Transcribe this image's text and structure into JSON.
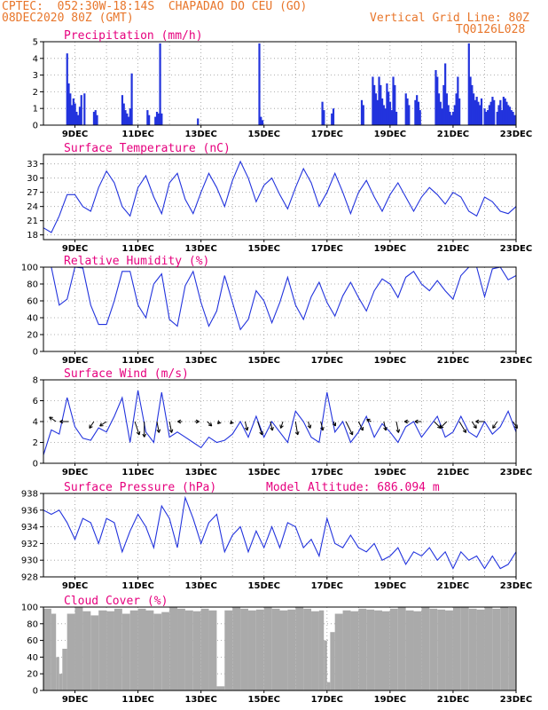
{
  "header": {
    "line1": "CPTEC:  052:30W-18:14S  CHAPADAO DO CEU (GO)",
    "line2": "08DEC2020 80Z (GMT)",
    "grid_note": "Vertical Grid Line: 80Z",
    "code": "TQ0126L028"
  },
  "colors": {
    "header": "#e8762b",
    "title": "#e6007e",
    "series": "#2233dd",
    "cloud": "#aaaaaa"
  },
  "chart_data": [
    {
      "id": "precip",
      "type": "bar",
      "title": "Precipitation (mm/h)",
      "ylim": [
        0,
        5
      ],
      "yticks": [
        0,
        1,
        2,
        3,
        4,
        5
      ],
      "xlim": [
        8,
        23
      ],
      "xtick_days": [
        9,
        11,
        13,
        15,
        17,
        19,
        21,
        23
      ],
      "xtick_labels": [
        "9DEC",
        "11DEC",
        "13DEC",
        "15DEC",
        "17DEC",
        "19DEC",
        "21DEC",
        "23DEC"
      ],
      "x_dec_day": [
        8.75,
        8.8,
        8.85,
        8.9,
        8.95,
        9.0,
        9.05,
        9.1,
        9.15,
        9.2,
        9.3,
        9.6,
        9.65,
        9.7,
        10.5,
        10.55,
        10.6,
        10.65,
        10.7,
        10.75,
        10.8,
        11.3,
        11.35,
        11.55,
        11.6,
        11.65,
        11.7,
        11.75,
        12.9,
        14.85,
        14.9,
        14.95,
        16.85,
        16.9,
        17.15,
        17.2,
        18.1,
        18.15,
        18.45,
        18.5,
        18.55,
        18.6,
        18.65,
        18.7,
        18.75,
        18.8,
        18.85,
        18.9,
        18.95,
        19.0,
        19.05,
        19.1,
        19.15,
        19.2,
        19.5,
        19.55,
        19.6,
        19.8,
        19.85,
        19.9,
        19.95,
        20.45,
        20.5,
        20.55,
        20.6,
        20.65,
        20.7,
        20.75,
        20.8,
        20.85,
        20.9,
        20.95,
        21.0,
        21.05,
        21.1,
        21.15,
        21.2,
        21.5,
        21.55,
        21.6,
        21.65,
        21.7,
        21.75,
        21.8,
        21.85,
        21.9,
        22.0,
        22.05,
        22.1,
        22.15,
        22.2,
        22.25,
        22.3,
        22.4,
        22.45,
        22.5,
        22.55,
        22.6,
        22.65,
        22.7,
        22.75,
        22.8,
        22.85,
        22.9,
        22.95
      ],
      "values": [
        4.3,
        2.5,
        1.9,
        1.2,
        1.6,
        1.3,
        0.8,
        0.6,
        1.1,
        1.8,
        1.9,
        0.8,
        0.9,
        0.6,
        1.8,
        1.3,
        0.9,
        0.7,
        0.5,
        1.0,
        3.1,
        0.9,
        0.6,
        0.5,
        0.8,
        0.7,
        4.9,
        0.7,
        0.4,
        4.9,
        0.5,
        0.3,
        1.4,
        0.9,
        0.7,
        1.0,
        1.5,
        1.2,
        2.9,
        2.4,
        1.9,
        1.5,
        2.9,
        2.4,
        1.6,
        1.2,
        1.0,
        2.5,
        2.0,
        1.4,
        0.9,
        2.9,
        2.4,
        0.8,
        1.9,
        1.6,
        1.2,
        1.5,
        1.8,
        1.4,
        0.9,
        3.3,
        2.9,
        1.9,
        1.4,
        1.0,
        2.4,
        3.7,
        1.9,
        1.2,
        0.8,
        0.6,
        0.8,
        1.2,
        1.9,
        2.9,
        1.6,
        4.9,
        2.9,
        2.4,
        1.9,
        1.5,
        1.7,
        1.4,
        1.2,
        1.6,
        1.0,
        0.8,
        0.9,
        1.2,
        1.4,
        1.7,
        1.5,
        0.8,
        1.2,
        1.5,
        0.9,
        1.7,
        1.6,
        1.4,
        1.2,
        1.1,
        0.9,
        0.8,
        0.6
      ]
    },
    {
      "id": "temp",
      "type": "line",
      "title": "Surface Temperature (nC)",
      "ylim": [
        17,
        35
      ],
      "yticks": [
        18,
        21,
        24,
        27,
        30,
        33
      ],
      "xlim": [
        8,
        23
      ],
      "xtick_days": [
        9,
        11,
        13,
        15,
        17,
        19,
        21,
        23
      ],
      "xtick_labels": [
        "9DEC",
        "11DEC",
        "13DEC",
        "15DEC",
        "17DEC",
        "19DEC",
        "21DEC",
        "23DEC"
      ],
      "x_dec_day": [
        8.0,
        8.25,
        8.5,
        8.75,
        9.0,
        9.25,
        9.5,
        9.75,
        10.0,
        10.25,
        10.5,
        10.75,
        11.0,
        11.25,
        11.5,
        11.75,
        12.0,
        12.25,
        12.5,
        12.75,
        13.0,
        13.25,
        13.5,
        13.75,
        14.0,
        14.25,
        14.5,
        14.75,
        15.0,
        15.25,
        15.5,
        15.75,
        16.0,
        16.25,
        16.5,
        16.75,
        17.0,
        17.25,
        17.5,
        17.75,
        18.0,
        18.25,
        18.5,
        18.75,
        19.0,
        19.25,
        19.5,
        19.75,
        20.0,
        20.25,
        20.5,
        20.75,
        21.0,
        21.25,
        21.5,
        21.75,
        22.0,
        22.25,
        22.5,
        22.75,
        23.0
      ],
      "values": [
        19.5,
        18.5,
        22.0,
        26.5,
        26.5,
        24.0,
        23.0,
        28.0,
        31.5,
        29.0,
        24.0,
        22.0,
        28.0,
        30.5,
        26.0,
        22.5,
        29.0,
        31.0,
        25.5,
        22.5,
        27.0,
        31.0,
        28.0,
        24.0,
        29.5,
        33.5,
        30.0,
        25.0,
        28.5,
        30.0,
        26.5,
        23.5,
        28.0,
        32.0,
        29.0,
        24.0,
        27.0,
        31.0,
        27.0,
        22.5,
        27.0,
        29.5,
        26.0,
        23.0,
        26.5,
        29.0,
        26.0,
        23.0,
        26.0,
        28.0,
        26.5,
        24.5,
        27.0,
        26.0,
        23.0,
        22.0,
        26.0,
        25.0,
        23.0,
        22.5,
        24.0
      ]
    },
    {
      "id": "rh",
      "type": "line",
      "title": "Relative Humidity (%)",
      "ylim": [
        0,
        100
      ],
      "yticks": [
        0,
        20,
        40,
        60,
        80,
        100
      ],
      "xlim": [
        8,
        23
      ],
      "xtick_days": [
        9,
        11,
        13,
        15,
        17,
        19,
        21,
        23
      ],
      "xtick_labels": [
        "9DEC",
        "11DEC",
        "13DEC",
        "15DEC",
        "17DEC",
        "19DEC",
        "21DEC",
        "23DEC"
      ],
      "x_dec_day": [
        8.0,
        8.25,
        8.5,
        8.75,
        9.0,
        9.25,
        9.5,
        9.75,
        10.0,
        10.25,
        10.5,
        10.75,
        11.0,
        11.25,
        11.5,
        11.75,
        12.0,
        12.25,
        12.5,
        12.75,
        13.0,
        13.25,
        13.5,
        13.75,
        14.0,
        14.25,
        14.5,
        14.75,
        15.0,
        15.25,
        15.5,
        15.75,
        16.0,
        16.25,
        16.5,
        16.75,
        17.0,
        17.25,
        17.5,
        17.75,
        18.0,
        18.25,
        18.5,
        18.75,
        19.0,
        19.25,
        19.5,
        19.75,
        20.0,
        20.25,
        20.5,
        20.75,
        21.0,
        21.25,
        21.5,
        21.75,
        22.0,
        22.25,
        22.5,
        22.75,
        23.0
      ],
      "values": [
        100,
        100,
        55,
        62,
        100,
        99,
        55,
        32,
        32,
        60,
        95,
        95,
        55,
        40,
        80,
        92,
        38,
        30,
        78,
        95,
        58,
        30,
        48,
        90,
        58,
        26,
        38,
        72,
        60,
        34,
        58,
        88,
        55,
        38,
        65,
        82,
        58,
        42,
        66,
        82,
        64,
        48,
        72,
        86,
        80,
        64,
        88,
        95,
        80,
        72,
        84,
        72,
        62,
        90,
        100,
        100,
        65,
        98,
        100,
        85,
        90
      ]
    },
    {
      "id": "wind",
      "type": "line",
      "title": "Surface Wind (m/s)",
      "ylim": [
        0,
        8
      ],
      "yticks": [
        0,
        2,
        4,
        6,
        8
      ],
      "xlim": [
        8,
        23
      ],
      "xtick_days": [
        9,
        11,
        13,
        15,
        17,
        19,
        21,
        23
      ],
      "xtick_labels": [
        "9DEC",
        "11DEC",
        "13DEC",
        "15DEC",
        "17DEC",
        "19DEC",
        "21DEC",
        "23DEC"
      ],
      "x_dec_day": [
        8.0,
        8.25,
        8.5,
        8.75,
        9.0,
        9.25,
        9.5,
        9.75,
        10.0,
        10.25,
        10.5,
        10.75,
        11.0,
        11.25,
        11.5,
        11.75,
        12.0,
        12.25,
        12.5,
        12.75,
        13.0,
        13.25,
        13.5,
        13.75,
        14.0,
        14.25,
        14.5,
        14.75,
        15.0,
        15.25,
        15.5,
        15.75,
        16.0,
        16.25,
        16.5,
        16.75,
        17.0,
        17.25,
        17.5,
        17.75,
        18.0,
        18.25,
        18.5,
        18.75,
        19.0,
        19.25,
        19.5,
        19.75,
        20.0,
        20.25,
        20.5,
        20.75,
        21.0,
        21.25,
        21.5,
        21.75,
        22.0,
        22.25,
        22.5,
        22.75,
        23.0
      ],
      "values": [
        0.8,
        3.2,
        2.8,
        6.3,
        3.5,
        2.4,
        2.2,
        3.4,
        3.0,
        4.5,
        6.3,
        2.0,
        7.0,
        3.0,
        2.0,
        6.8,
        2.5,
        3.0,
        2.5,
        2.0,
        1.5,
        2.5,
        2.0,
        2.2,
        2.8,
        4.0,
        2.5,
        4.5,
        2.5,
        4.0,
        3.0,
        2.0,
        5.0,
        4.0,
        2.5,
        2.0,
        6.8,
        3.0,
        4.0,
        2.0,
        3.0,
        4.5,
        2.5,
        3.8,
        3.0,
        2.0,
        3.5,
        4.0,
        2.5,
        3.5,
        4.5,
        2.5,
        3.0,
        4.5,
        3.0,
        2.5,
        4.0,
        2.8,
        3.5,
        5.0,
        3.0
      ],
      "arrows_x": [
        8.4,
        8.8,
        9.6,
        10.0,
        10.9,
        11.2,
        11.6,
        12.0,
        12.4,
        12.8,
        13.2,
        13.6,
        14.0,
        14.4,
        14.8,
        15.2,
        15.6,
        16.0,
        16.4,
        16.8,
        17.2,
        17.6,
        18.0,
        18.4,
        18.8,
        19.2,
        19.6,
        20.0,
        20.4,
        20.8,
        21.2,
        21.6,
        22.0,
        22.4,
        22.9
      ],
      "arrows_u": [
        -1.5,
        -2.0,
        -1.0,
        -1.5,
        1.0,
        0.0,
        0.5,
        0.5,
        -1.0,
        1.0,
        1.0,
        -0.5,
        -0.5,
        0.5,
        1.0,
        0.5,
        -0.5,
        0.5,
        0.5,
        0.5,
        0.5,
        1.5,
        1.0,
        -1.0,
        0.5,
        0.5,
        -1.0,
        -1.5,
        1.5,
        -1.5,
        1.5,
        1.0,
        -2.0,
        -1.0,
        1.0
      ],
      "arrows_v": [
        -1.0,
        0.0,
        1.5,
        1.0,
        3.0,
        3.5,
        2.5,
        2.5,
        0.0,
        0.0,
        1.0,
        0.5,
        0.5,
        2.0,
        3.0,
        2.0,
        1.5,
        3.0,
        1.5,
        2.0,
        1.0,
        3.0,
        2.0,
        -0.5,
        2.0,
        2.5,
        0.0,
        0.0,
        1.5,
        1.5,
        2.5,
        1.5,
        0.0,
        1.5,
        1.5
      ]
    },
    {
      "id": "pres",
      "type": "line",
      "title": "Surface Pressure (hPa)",
      "annotation": "Model Altitude: 686.094 m",
      "ylim": [
        928,
        938
      ],
      "yticks": [
        928,
        930,
        932,
        934,
        936,
        938
      ],
      "xlim": [
        8,
        23
      ],
      "xtick_days": [
        9,
        11,
        13,
        15,
        17,
        19,
        21,
        23
      ],
      "xtick_labels": [
        "9DEC",
        "11DEC",
        "13DEC",
        "15DEC",
        "17DEC",
        "19DEC",
        "21DEC",
        "23DEC"
      ],
      "x_dec_day": [
        8.0,
        8.25,
        8.5,
        8.75,
        9.0,
        9.25,
        9.5,
        9.75,
        10.0,
        10.25,
        10.5,
        10.75,
        11.0,
        11.25,
        11.5,
        11.75,
        12.0,
        12.25,
        12.5,
        12.75,
        13.0,
        13.25,
        13.5,
        13.75,
        14.0,
        14.25,
        14.5,
        14.75,
        15.0,
        15.25,
        15.5,
        15.75,
        16.0,
        16.25,
        16.5,
        16.75,
        17.0,
        17.25,
        17.5,
        17.75,
        18.0,
        18.25,
        18.5,
        18.75,
        19.0,
        19.25,
        19.5,
        19.75,
        20.0,
        20.25,
        20.5,
        20.75,
        21.0,
        21.25,
        21.5,
        21.75,
        22.0,
        22.25,
        22.5,
        22.75,
        23.0
      ],
      "values": [
        936.0,
        935.5,
        936.0,
        934.5,
        932.5,
        935.0,
        934.5,
        932.0,
        935.0,
        934.5,
        931.0,
        933.5,
        935.5,
        934.0,
        931.5,
        936.5,
        935.0,
        931.5,
        937.5,
        935.0,
        932.0,
        934.5,
        935.5,
        931.0,
        933.0,
        934.0,
        931.0,
        933.5,
        931.5,
        934.0,
        931.5,
        934.5,
        934.0,
        931.5,
        932.5,
        930.5,
        935.0,
        932.0,
        931.5,
        933.0,
        931.5,
        931.0,
        932.0,
        930.0,
        930.5,
        931.5,
        929.5,
        931.0,
        930.5,
        931.5,
        930.0,
        931.0,
        929.0,
        931.0,
        930.0,
        930.5,
        929.0,
        930.5,
        929.0,
        929.5,
        931.0
      ]
    },
    {
      "id": "cloud",
      "type": "bar",
      "title": "Cloud Cover (%)",
      "ylim": [
        0,
        100
      ],
      "yticks": [
        0,
        20,
        40,
        60,
        80,
        100
      ],
      "xlim": [
        8,
        23
      ],
      "xtick_days": [
        9,
        11,
        13,
        15,
        17,
        19,
        21,
        23
      ],
      "xtick_labels": [
        "9DEC",
        "11DEC",
        "13DEC",
        "15DEC",
        "17DEC",
        "19DEC",
        "21DEC",
        "23DEC"
      ],
      "x_dec_day": [
        8.0,
        8.25,
        8.4,
        8.5,
        8.6,
        8.75,
        9.0,
        9.25,
        9.5,
        9.75,
        10.0,
        10.25,
        10.5,
        10.75,
        11.0,
        11.25,
        11.5,
        11.75,
        12.0,
        12.25,
        12.5,
        12.75,
        13.0,
        13.25,
        13.5,
        13.75,
        14.0,
        14.25,
        14.5,
        14.75,
        15.0,
        15.25,
        15.5,
        15.75,
        16.0,
        16.25,
        16.5,
        16.75,
        16.9,
        17.0,
        17.1,
        17.25,
        17.5,
        17.75,
        18.0,
        18.25,
        18.5,
        18.75,
        19.0,
        19.25,
        19.5,
        19.75,
        20.0,
        20.25,
        20.5,
        20.75,
        21.0,
        21.25,
        21.5,
        21.75,
        22.0,
        22.25,
        22.5,
        22.75,
        23.0
      ],
      "values": [
        98,
        92,
        40,
        20,
        50,
        92,
        100,
        95,
        90,
        96,
        95,
        98,
        92,
        96,
        98,
        96,
        92,
        94,
        100,
        98,
        96,
        95,
        98,
        96,
        5,
        96,
        100,
        98,
        96,
        97,
        100,
        98,
        96,
        97,
        100,
        98,
        95,
        96,
        60,
        10,
        70,
        92,
        96,
        95,
        98,
        97,
        96,
        95,
        98,
        100,
        96,
        95,
        100,
        98,
        97,
        96,
        100,
        100,
        98,
        97,
        100,
        98,
        100,
        99,
        100
      ]
    }
  ]
}
